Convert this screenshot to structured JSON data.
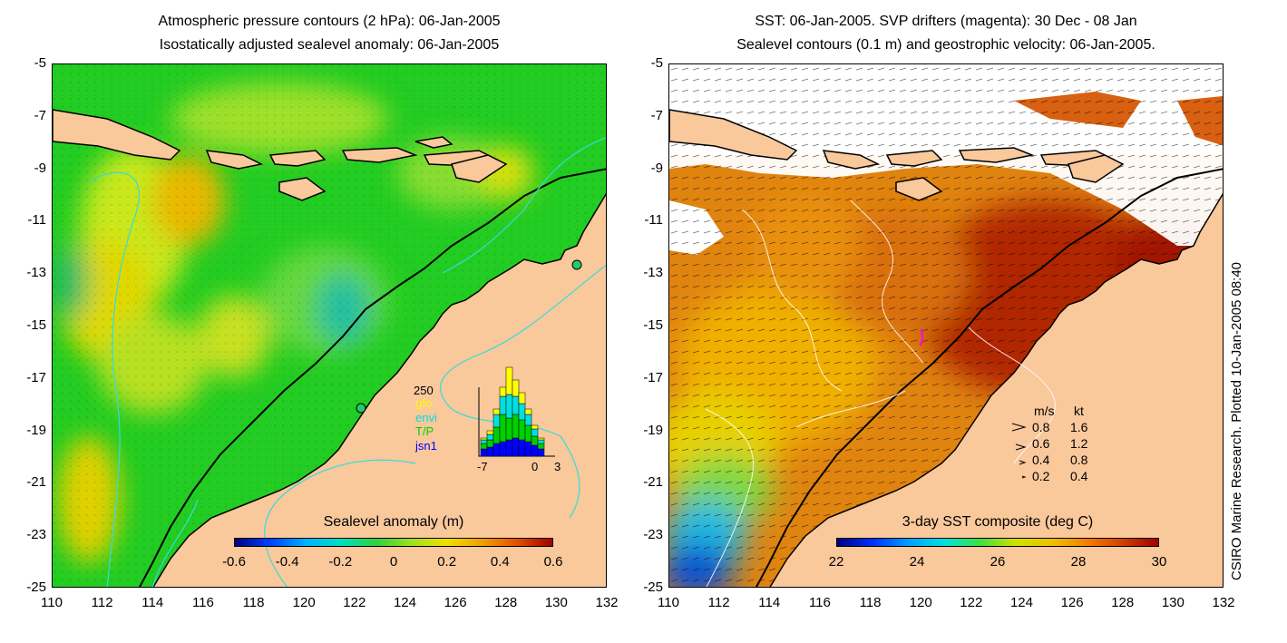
{
  "left_panel": {
    "title_line1": "Atmospheric pressure contours (2 hPa): 06-Jan-2005",
    "title_line2": "Isostatically adjusted sealevel anomaly: 06-Jan-2005",
    "colorbar_title": "Sealevel anomaly (m)",
    "colorbar_ticks": [
      "-0.6",
      "-0.4",
      "-0.2",
      "0",
      "0.2",
      "0.4",
      "0.6"
    ],
    "histogram": {
      "ymax_label": "250",
      "legend": [
        "gfo",
        "envi",
        "T/P",
        "jsn1"
      ],
      "x_ticks": [
        "-7",
        "0",
        "3"
      ],
      "colors": {
        "gfo": "#ffff00",
        "envi": "#00e0e0",
        "T/P": "#00d000",
        "jsn1": "#0000ff"
      }
    }
  },
  "right_panel": {
    "title_line1": "SST: 06-Jan-2005. SVP drifters (magenta): 30 Dec - 08 Jan",
    "title_line2": "Sealevel contours (0.1 m) and geostrophic velocity: 06-Jan-2005.",
    "colorbar_title": "3-day SST composite (deg C)",
    "colorbar_ticks": [
      "22",
      "24",
      "26",
      "28",
      "30"
    ],
    "velocity_legend": {
      "header_ms": "m/s",
      "header_kt": "kt",
      "rows": [
        {
          "ms": "0.8",
          "kt": "1.6"
        },
        {
          "ms": "0.6",
          "kt": "1.2"
        },
        {
          "ms": "0.4",
          "kt": "0.8"
        },
        {
          "ms": "0.2",
          "kt": "0.4"
        }
      ]
    }
  },
  "y_ticks": [
    "-5",
    "-7",
    "-9",
    "-11",
    "-13",
    "-15",
    "-17",
    "-19",
    "-21",
    "-23",
    "-25"
  ],
  "x_ticks": [
    "110",
    "112",
    "114",
    "116",
    "118",
    "120",
    "122",
    "124",
    "126",
    "128",
    "130",
    "132"
  ],
  "credit": "CSIRO Marine Research. Plotted 10-Jan-2005 08:40",
  "colors": {
    "land": "#f9c89b",
    "sea_green": "#22cc22",
    "sst_warm": "#c83a00",
    "sst_orange": "#e8860a",
    "contour_cyan": "#33dddd"
  }
}
